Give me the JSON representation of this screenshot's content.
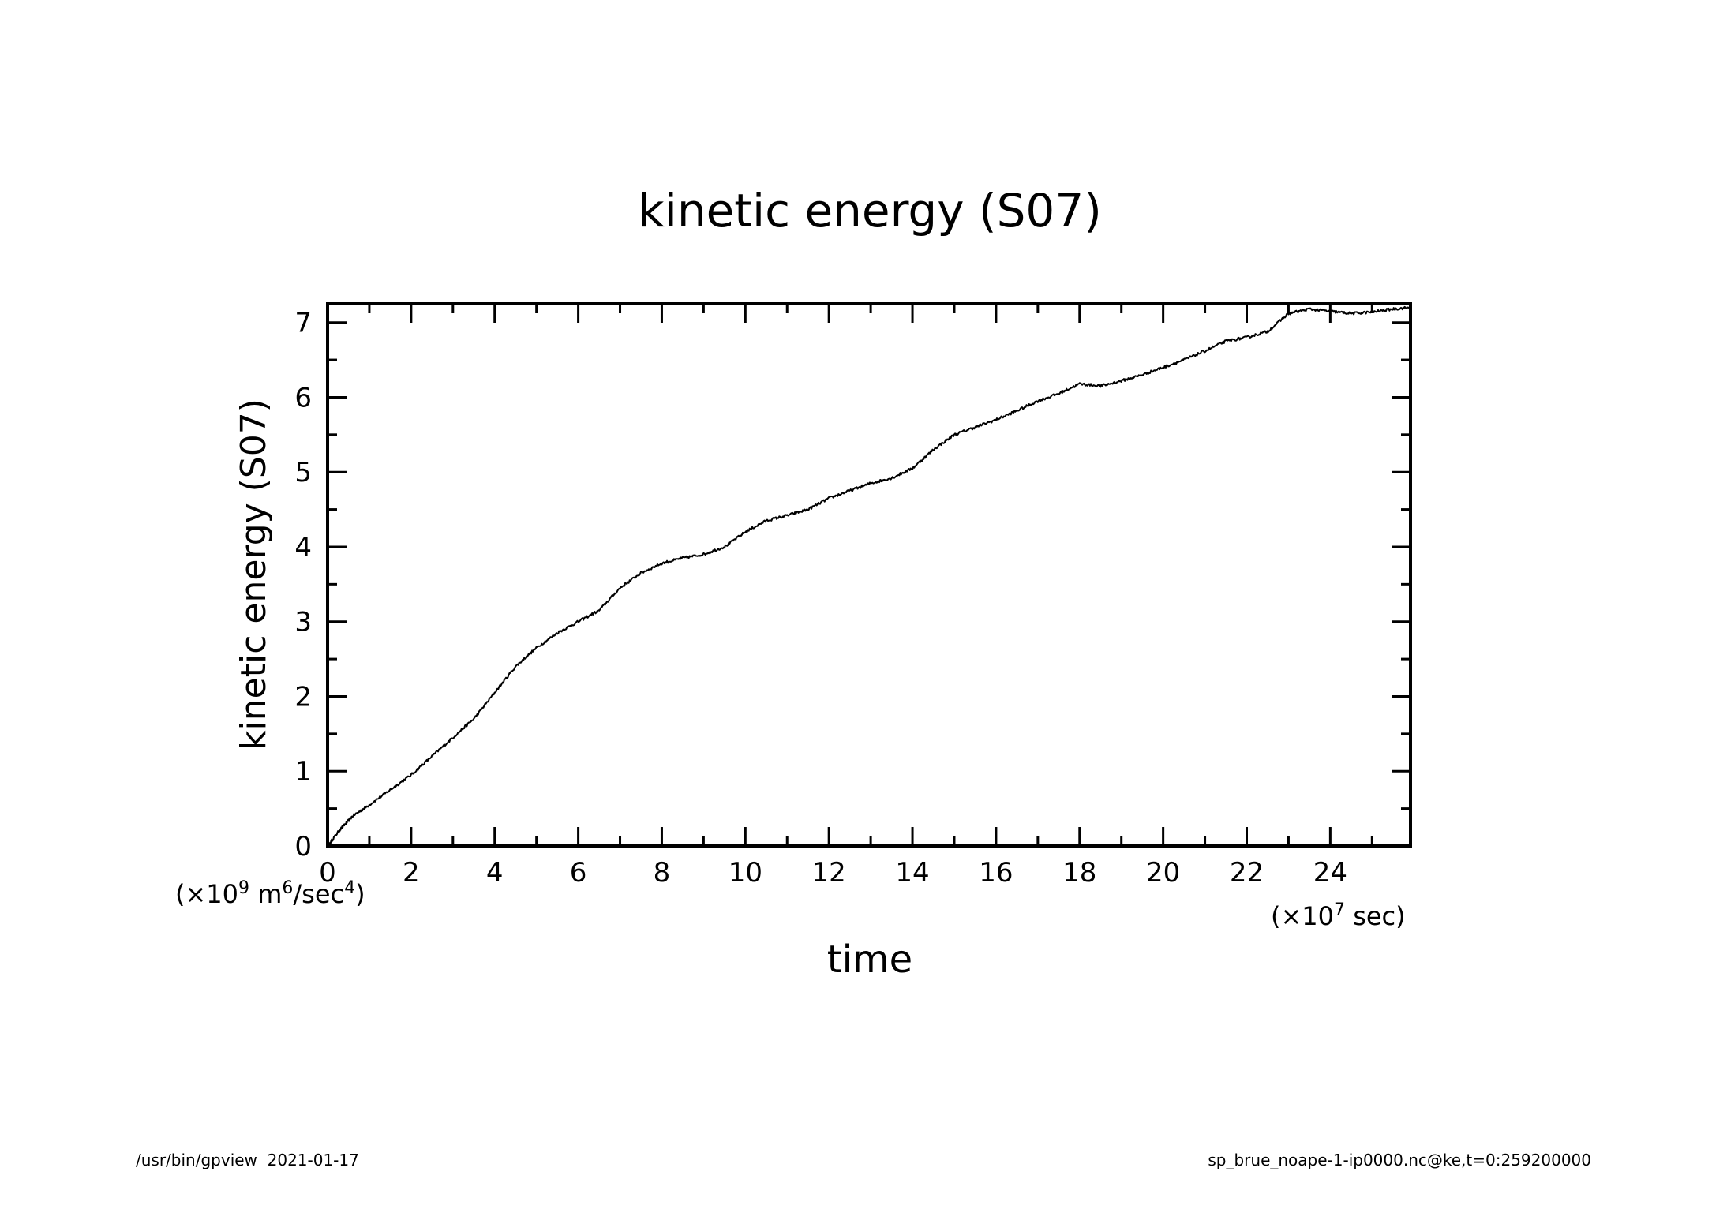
{
  "chart_data": {
    "type": "line",
    "title": "kinetic energy (S07)",
    "xlabel": "time",
    "ylabel": "kinetic energy (S07)",
    "x_unit": "(×10^7 sec)",
    "y_unit": "(×10^9 m^6/sec^4)",
    "xlim": [
      0,
      25.92
    ],
    "ylim": [
      0,
      7.25
    ],
    "x_ticks": [
      0,
      2,
      4,
      6,
      8,
      10,
      12,
      14,
      16,
      18,
      20,
      22,
      24
    ],
    "y_ticks": [
      0,
      1,
      2,
      3,
      4,
      5,
      6,
      7
    ],
    "grid": false,
    "legend": "none",
    "series": [
      {
        "x": [
          0,
          0.3,
          0.6,
          1.0,
          1.5,
          2.0,
          2.5,
          3.0,
          3.5,
          4.0,
          4.5,
          5.0,
          5.5,
          6.0,
          6.5,
          7.0,
          7.5,
          8.0,
          8.5,
          9.0,
          9.5,
          10.0,
          10.5,
          11.0,
          11.5,
          12.0,
          12.5,
          13.0,
          13.5,
          14.0,
          14.5,
          15.0,
          15.5,
          16.0,
          16.5,
          17.0,
          17.5,
          18.0,
          18.5,
          19.0,
          19.5,
          20.0,
          20.5,
          21.0,
          21.5,
          22.0,
          22.5,
          23.0,
          23.5,
          24.0,
          24.5,
          25.0,
          25.5,
          25.92
        ],
        "y": [
          0.0,
          0.22,
          0.4,
          0.55,
          0.75,
          0.95,
          1.2,
          1.45,
          1.7,
          2.05,
          2.4,
          2.65,
          2.85,
          3.0,
          3.15,
          3.45,
          3.65,
          3.78,
          3.85,
          3.9,
          4.0,
          4.2,
          4.35,
          4.42,
          4.5,
          4.65,
          4.75,
          4.85,
          4.92,
          5.05,
          5.3,
          5.5,
          5.6,
          5.7,
          5.82,
          5.95,
          6.05,
          6.18,
          6.15,
          6.22,
          6.3,
          6.4,
          6.5,
          6.62,
          6.75,
          6.8,
          6.88,
          7.12,
          7.18,
          7.15,
          7.12,
          7.14,
          7.18,
          7.2
        ],
        "color": "#000000"
      }
    ]
  },
  "footer": {
    "left": "/usr/bin/gpview  2021-01-17",
    "right": "sp_brue_noape-1-ip0000.nc@ke,t=0:259200000"
  }
}
